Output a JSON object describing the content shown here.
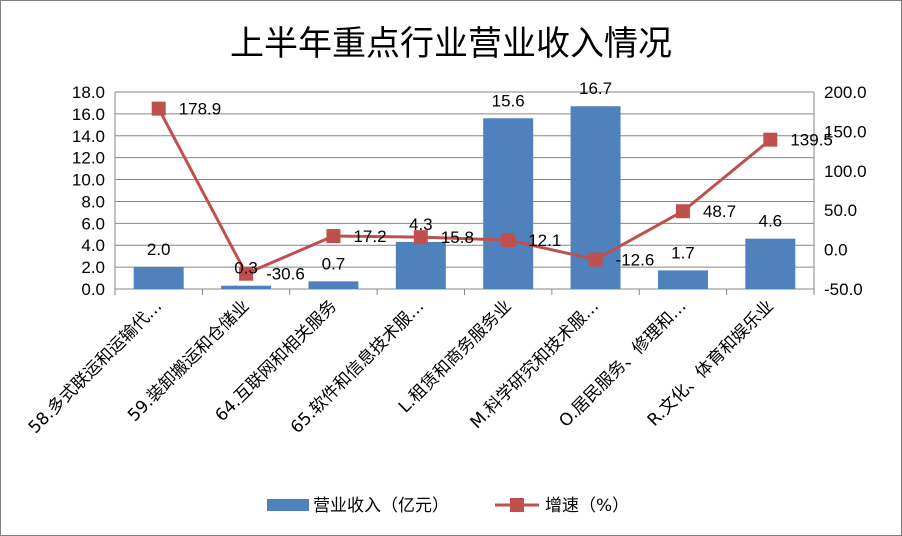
{
  "chart_data": {
    "type": "bar",
    "title": "上半年重点行业营业收入情况",
    "categories": [
      "58.多式联运和运输代…",
      "59.装卸搬运和仓储业",
      "64.互联网和相关服务",
      "65.软件和信息技术服…",
      "L.租赁和商务服务业",
      "M.科学研究和技术服…",
      "O.居民服务、修理和…",
      "R.文化、体育和娱乐业"
    ],
    "series": [
      {
        "name": "营业收入（亿元）",
        "type": "bar",
        "axis": "left",
        "color": "#4f81bd",
        "values": [
          2.0,
          0.3,
          0.7,
          4.3,
          15.6,
          16.7,
          1.7,
          4.6
        ],
        "labels": [
          "2.0",
          "0.3",
          "0.7",
          "4.3",
          "15.6",
          "16.7",
          "1.7",
          "4.6"
        ]
      },
      {
        "name": "增速（%）",
        "type": "line",
        "axis": "right",
        "color": "#c0504d",
        "values": [
          178.9,
          -30.6,
          17.2,
          15.8,
          12.1,
          -12.6,
          48.7,
          139.5
        ],
        "labels": [
          "178.9",
          "-30.6",
          "17.2",
          "15.8",
          "12.1",
          "-12.6",
          "48.7",
          "139.5"
        ]
      }
    ],
    "y_left": {
      "min": 0,
      "max": 18,
      "step": 2,
      "ticks": [
        "0.0",
        "2.0",
        "4.0",
        "6.0",
        "8.0",
        "10.0",
        "12.0",
        "14.0",
        "16.0",
        "18.0"
      ]
    },
    "y_right": {
      "min": -50,
      "max": 200,
      "step": 50,
      "ticks": [
        "-50.0",
        "0.0",
        "50.0",
        "100.0",
        "150.0",
        "200.0"
      ]
    },
    "grid": true,
    "legend_position": "bottom"
  }
}
